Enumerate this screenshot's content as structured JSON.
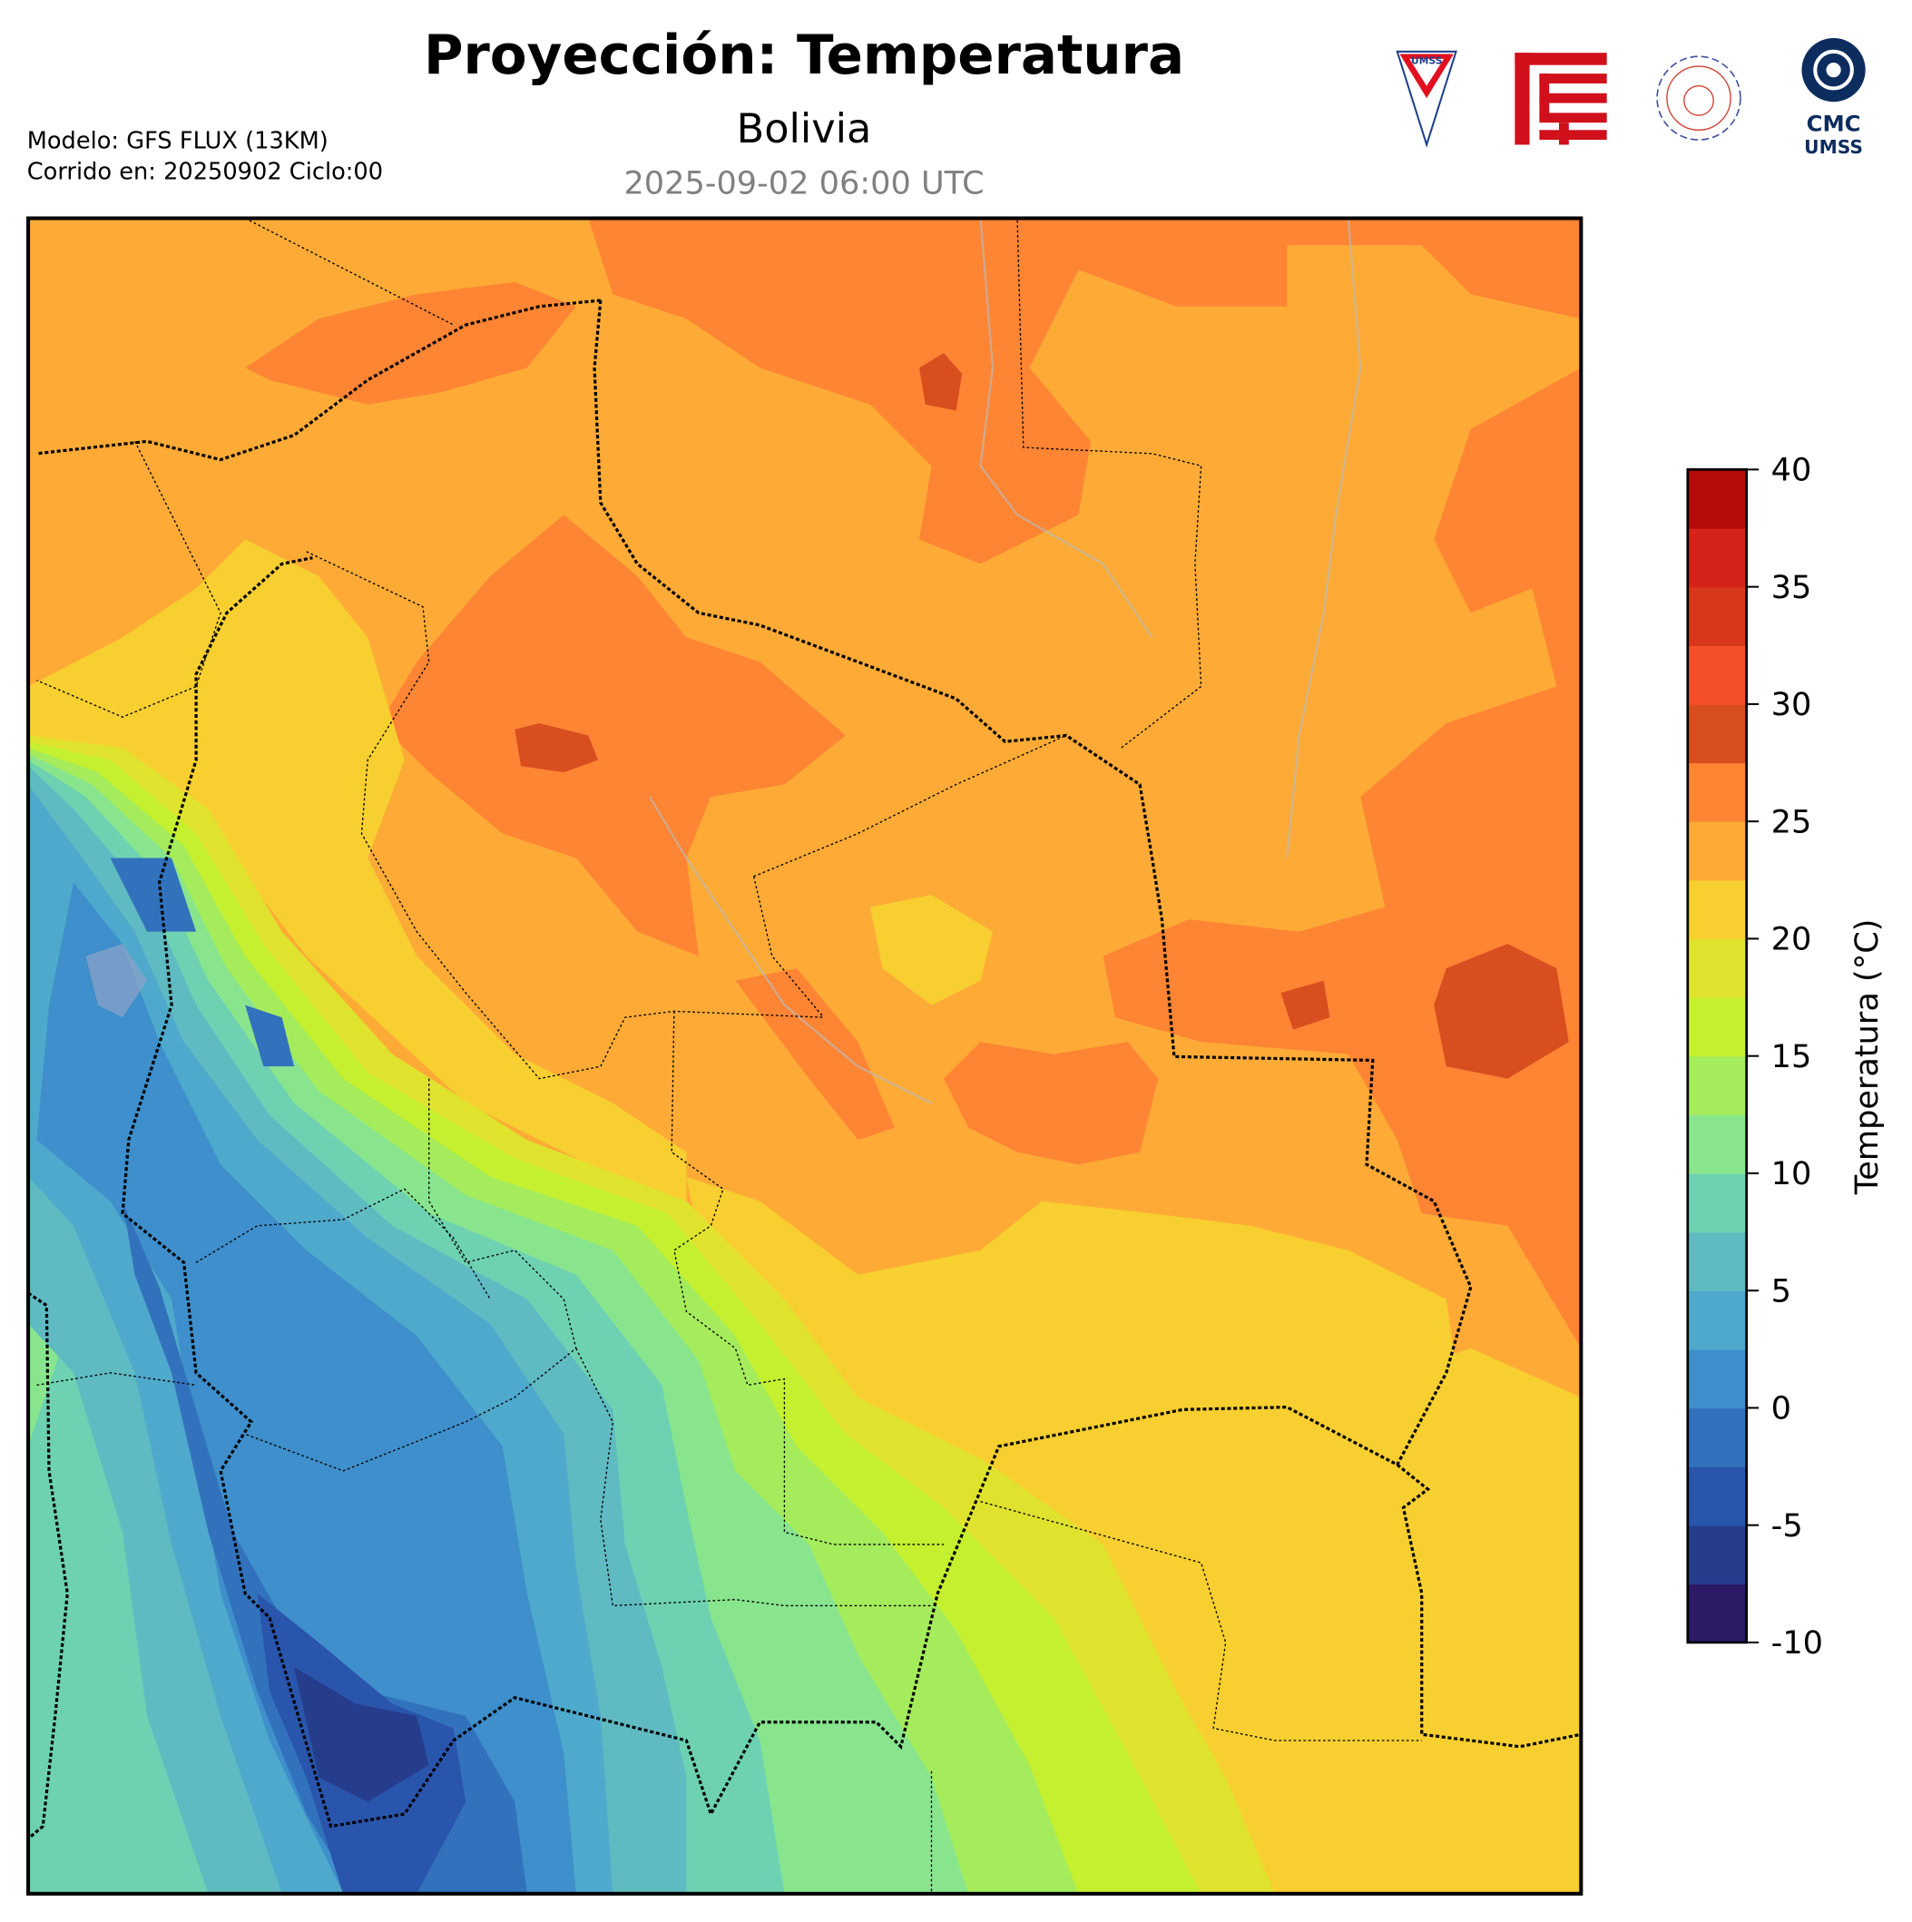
{
  "header": {
    "title": "Proyección: Temperatura",
    "subtitle": "Bolivia",
    "valid_time": "2025-09-02 06:00 UTC",
    "model_line": "Modelo: GFS FLUX (13KM)",
    "run_line": "Corrido en: 20250902 Ciclo:00"
  },
  "logos": {
    "umss": "UMSS",
    "cmc_top": "CMC",
    "cmc_bottom": "UMSS"
  },
  "chart_data": {
    "type": "heatmap",
    "title": "Proyección: Temperatura",
    "region": "Bolivia",
    "colorbar": {
      "label": "Temperatura (°C)",
      "range": [
        -10,
        40
      ],
      "step": 2.5,
      "ticks": [
        -10,
        -5,
        0,
        5,
        10,
        15,
        20,
        25,
        30,
        35,
        40
      ],
      "tick_labels": [
        "-10",
        "-5",
        "0",
        "5",
        "10",
        "15",
        "20",
        "25",
        "30",
        "35",
        "40"
      ],
      "colors": [
        "#2c1a67",
        "#263d8c",
        "#2a55ac",
        "#3272bd",
        "#3e8fcb",
        "#4fa9cc",
        "#5fbac2",
        "#6dd1b2",
        "#88e58e",
        "#a5ec5c",
        "#c5f02f",
        "#e0e32d",
        "#f7cf30",
        "#fdab36",
        "#fe8534",
        "#d94e1f",
        "#f5502c",
        "#d8381a",
        "#d52319",
        "#b50b0a"
      ]
    }
  }
}
